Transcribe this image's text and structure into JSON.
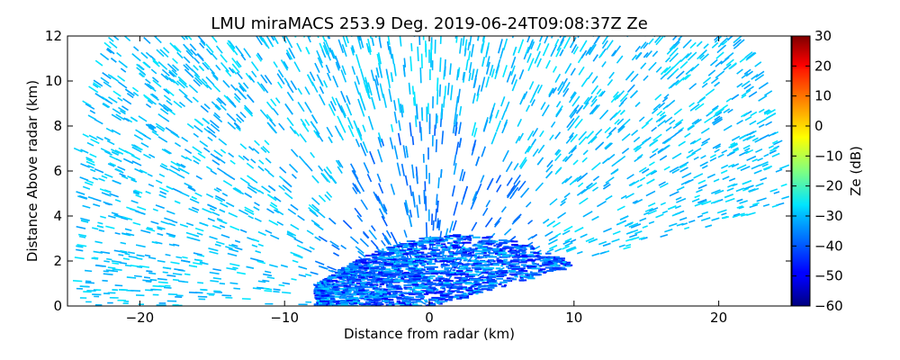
{
  "chart_data": {
    "type": "heatmap",
    "title": "LMU miraMACS 253.9 Deg. 2019-06-24T09:08:37Z  Ze",
    "xlabel": "Distance from radar (km)",
    "ylabel": "Distance Above radar  (km)",
    "xlim": [
      -25,
      25
    ],
    "ylim": [
      0,
      12
    ],
    "x_ticks": [
      -20,
      -10,
      0,
      10,
      20
    ],
    "x_tick_labels": [
      "−20",
      "−10",
      "0",
      "10",
      "20"
    ],
    "y_ticks": [
      0,
      2,
      4,
      6,
      8,
      10,
      12
    ],
    "y_tick_labels": [
      "0",
      "2",
      "4",
      "6",
      "8",
      "10",
      "12"
    ],
    "colorbar": {
      "label": "Ze (dB)",
      "min": -60,
      "max": 30,
      "colormap": "jet",
      "ticks": [
        30,
        20,
        10,
        0,
        -10,
        -20,
        -30,
        -40,
        -50,
        -60
      ],
      "tick_labels": [
        "30",
        "20",
        "10",
        "0",
        "−10",
        "−20",
        "−30",
        "−40",
        "−50",
        "−60"
      ]
    },
    "scan": {
      "azimuth_deg": 253.9,
      "left_ground_edge_km": -24,
      "right_edge_end_km": [
        24,
        4.4
      ],
      "max_range_km": 25
    },
    "features": [
      {
        "name": "noise speckle",
        "ze_db_range": [
          -35,
          -28
        ]
      },
      {
        "name": "low echo layer",
        "x_range_km": [
          -8,
          12
        ],
        "height_range_km": [
          0,
          3.2
        ],
        "ze_db_range": [
          -50,
          -30
        ]
      }
    ]
  }
}
